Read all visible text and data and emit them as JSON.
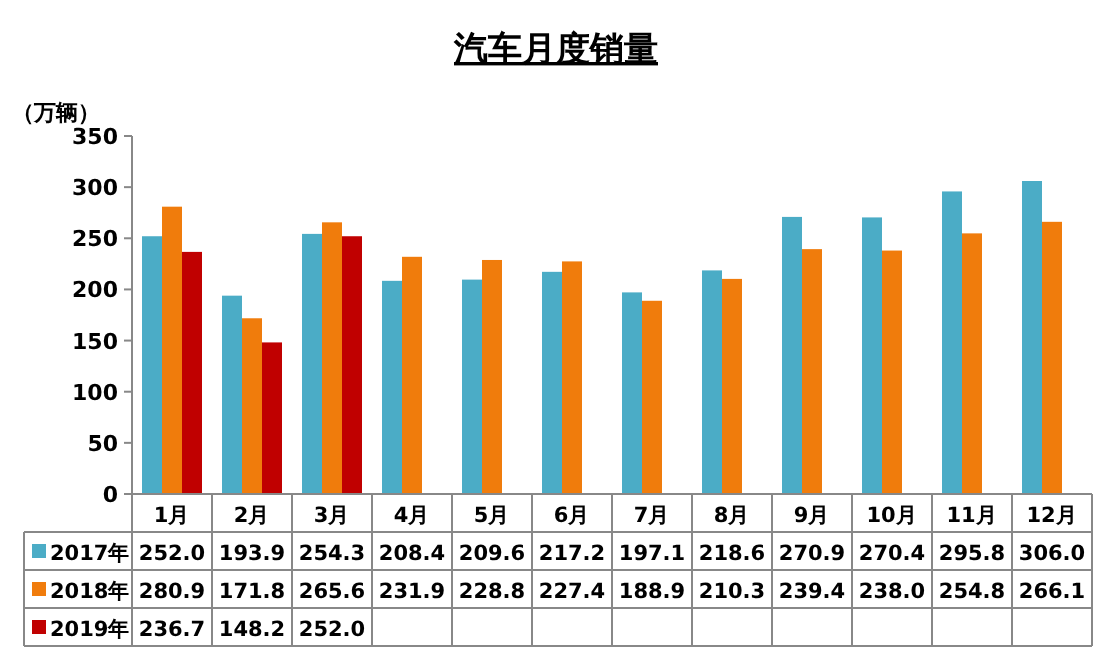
{
  "chart_data": {
    "type": "bar",
    "title": "汽车月度销量",
    "ylabel": "（万辆）",
    "categories": [
      "1月",
      "2月",
      "3月",
      "4月",
      "5月",
      "6月",
      "7月",
      "8月",
      "9月",
      "10月",
      "11月",
      "12月"
    ],
    "ylim": [
      0,
      350
    ],
    "yticks": [
      0,
      50,
      100,
      150,
      200,
      250,
      300,
      350
    ],
    "grid": false,
    "legend": "bottom",
    "series": [
      {
        "name": "2017年",
        "color": "#4bacc6",
        "values": [
          252.0,
          193.9,
          254.3,
          208.4,
          209.6,
          217.2,
          197.1,
          218.6,
          270.9,
          270.4,
          295.8,
          306.0
        ],
        "value_labels": [
          "252.0",
          "193.9",
          "254.3",
          "208.4",
          "209.6",
          "217.2",
          "197.1",
          "218.6",
          "270.9",
          "270.4",
          "295.8",
          "306.0"
        ]
      },
      {
        "name": "2018年",
        "color": "#f07c0c",
        "values": [
          280.9,
          171.8,
          265.6,
          231.9,
          228.8,
          227.4,
          188.9,
          210.3,
          239.4,
          238.0,
          254.8,
          266.1
        ],
        "value_labels": [
          "280.9",
          "171.8",
          "265.6",
          "231.9",
          "228.8",
          "227.4",
          "188.9",
          "210.3",
          "239.4",
          "238.0",
          "254.8",
          "266.1"
        ]
      },
      {
        "name": "2019年",
        "color": "#c00000",
        "values": [
          236.7,
          148.2,
          252.0,
          null,
          null,
          null,
          null,
          null,
          null,
          null,
          null,
          null
        ],
        "value_labels": [
          "236.7",
          "148.2",
          "252.0",
          null,
          null,
          null,
          null,
          null,
          null,
          null,
          null,
          null
        ]
      }
    ]
  }
}
